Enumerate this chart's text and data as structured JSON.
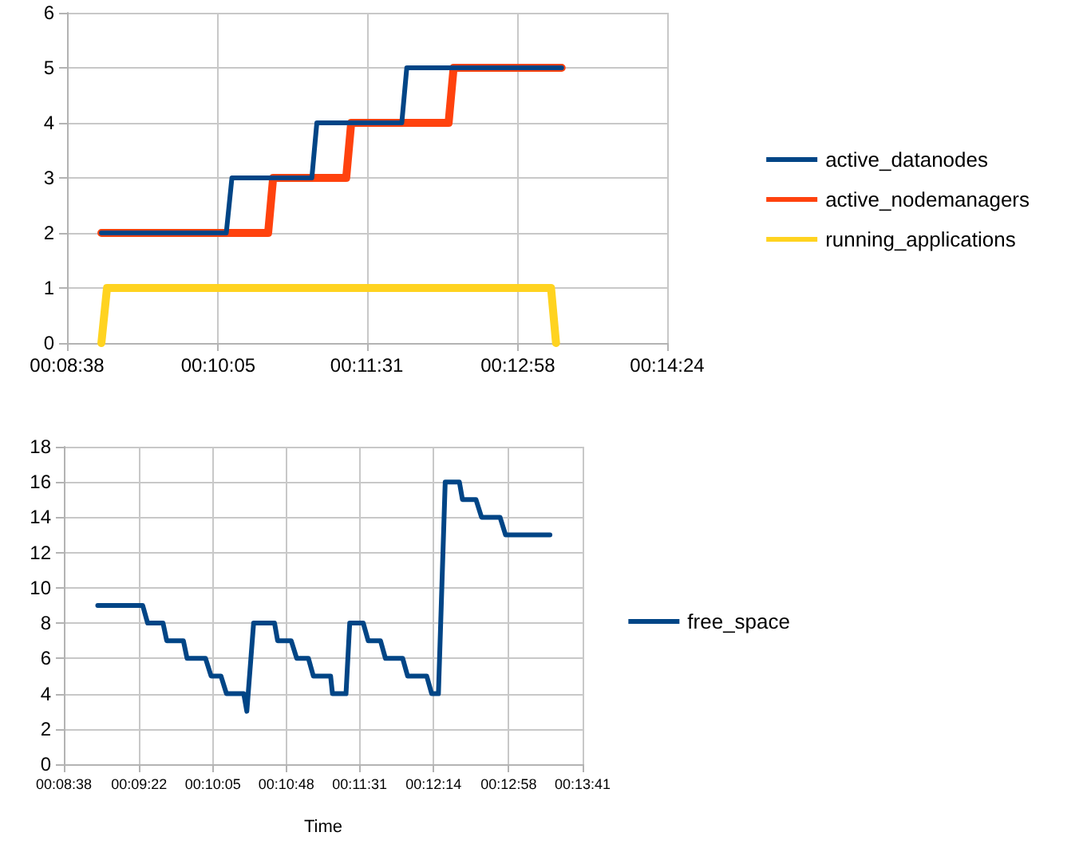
{
  "chart_data": [
    {
      "type": "line",
      "xlim": [
        0.1439,
        0.24
      ],
      "xticks": [
        {
          "value": 0.1439,
          "label": "00:08:38"
        },
        {
          "value": 0.1681,
          "label": "00:10:05"
        },
        {
          "value": 0.1919,
          "label": "00:11:31"
        },
        {
          "value": 0.2161,
          "label": "00:12:58"
        },
        {
          "value": 0.24,
          "label": "00:14:24"
        }
      ],
      "ylim": [
        0,
        6
      ],
      "yticks": [
        0,
        1,
        2,
        3,
        4,
        5,
        6
      ],
      "grid": true,
      "legend": "right",
      "marker": "none",
      "line_style": "solid",
      "series": [
        {
          "name": "active_datanodes",
          "color": "#004586",
          "x": [
            0.1494,
            0.1694,
            0.1703,
            0.1831,
            0.1839,
            0.1975,
            0.1983,
            0.2231
          ],
          "values": [
            2,
            2,
            3,
            3,
            4,
            4,
            5,
            5
          ]
        },
        {
          "name": "active_nodemanagers",
          "color": "#ff420e",
          "x": [
            0.1494,
            0.1761,
            0.1769,
            0.1886,
            0.1894,
            0.205,
            0.2058,
            0.2231
          ],
          "values": [
            2,
            2,
            3,
            3,
            4,
            4,
            5,
            5
          ]
        },
        {
          "name": "running_applications",
          "color": "#ffd320",
          "x": [
            0.1494,
            0.1503,
            0.2214,
            0.2222
          ],
          "values": [
            0,
            1,
            1,
            0
          ]
        }
      ]
    },
    {
      "type": "line",
      "xlabel": "Time",
      "xlim": [
        0.1439,
        0.2281
      ],
      "xticks": [
        {
          "value": 0.1439,
          "label": "00:08:38"
        },
        {
          "value": 0.1561,
          "label": "00:09:22"
        },
        {
          "value": 0.1681,
          "label": "00:10:05"
        },
        {
          "value": 0.18,
          "label": "00:10:48"
        },
        {
          "value": 0.1919,
          "label": "00:11:31"
        },
        {
          "value": 0.2039,
          "label": "00:12:14"
        },
        {
          "value": 0.2161,
          "label": "00:12:58"
        },
        {
          "value": 0.2281,
          "label": "00:13:41"
        }
      ],
      "ylim": [
        0,
        18
      ],
      "yticks": [
        0,
        2,
        4,
        6,
        8,
        10,
        12,
        14,
        16,
        18
      ],
      "grid": true,
      "legend": "right",
      "marker": "none",
      "line_style": "solid",
      "series": [
        {
          "name": "free_space",
          "color": "#004586",
          "x": [
            0.1494,
            0.1567,
            0.1575,
            0.16,
            0.1606,
            0.1633,
            0.1639,
            0.1669,
            0.1678,
            0.1694,
            0.1703,
            0.1731,
            0.1736,
            0.1747,
            0.1781,
            0.1786,
            0.1808,
            0.1817,
            0.1836,
            0.1844,
            0.1872,
            0.1875,
            0.1897,
            0.1903,
            0.1925,
            0.1933,
            0.1953,
            0.1961,
            0.1989,
            0.1997,
            0.2028,
            0.2036,
            0.2047,
            0.2058,
            0.2081,
            0.2086,
            0.2108,
            0.2117,
            0.2147,
            0.2156,
            0.2228
          ],
          "values": [
            9,
            9,
            8,
            8,
            7,
            7,
            6,
            6,
            5,
            5,
            4,
            4,
            3,
            8,
            8,
            7,
            7,
            6,
            6,
            5,
            5,
            4,
            4,
            8,
            8,
            7,
            7,
            6,
            6,
            5,
            5,
            4,
            4,
            16,
            16,
            15,
            15,
            14,
            14,
            13,
            13
          ]
        }
      ]
    }
  ]
}
